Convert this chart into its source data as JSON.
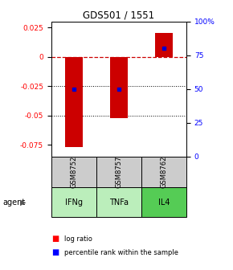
{
  "title": "GDS501 / 1551",
  "samples": [
    "GSM8752",
    "GSM8757",
    "GSM8762"
  ],
  "agents": [
    "IFNg",
    "TNFa",
    "IL4"
  ],
  "log_ratios": [
    -0.077,
    -0.052,
    0.02
  ],
  "percentile_ranks": [
    0.5,
    0.5,
    0.8
  ],
  "ylim": [
    -0.085,
    0.03
  ],
  "y_left_ticks": [
    0.025,
    0,
    -0.025,
    -0.05,
    -0.075
  ],
  "y_right_ticks": [
    100,
    75,
    50,
    25,
    0
  ],
  "bar_color": "#CC0000",
  "pct_color": "#0000CC",
  "zero_line_color": "#CC0000",
  "grid_color": "#000000",
  "agent_colors": [
    "#bbeebb",
    "#bbeebb",
    "#55cc55"
  ],
  "sample_bg": "#cccccc",
  "bar_width": 0.4,
  "legend_red": "log ratio",
  "legend_blue": "percentile rank within the sample"
}
